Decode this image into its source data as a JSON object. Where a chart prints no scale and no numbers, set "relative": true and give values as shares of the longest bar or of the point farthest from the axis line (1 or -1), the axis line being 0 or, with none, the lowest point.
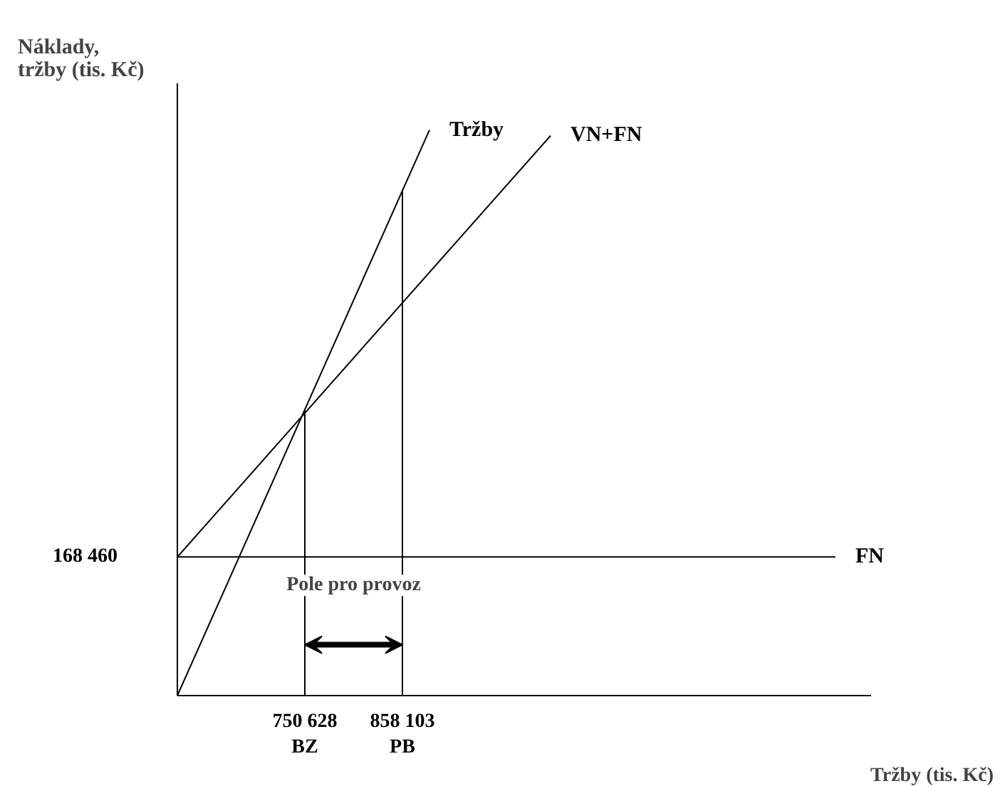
{
  "chart_data": {
    "type": "line",
    "relative": true,
    "ylabel": "Náklady,\ntržby (tis. Kč)",
    "xlabel": "Tržby (tis. Kč)",
    "xlim": [
      610200,
      1374300
    ],
    "xticks": [
      {
        "value": 750628,
        "label": "750 628\nBZ"
      },
      {
        "value": 858103,
        "label": "858 103\nPB"
      }
    ],
    "series": [
      {
        "name": "Tržby",
        "color": "#000000",
        "x": [
          610200,
          887900
        ],
        "values": [
          0,
          1
        ]
      },
      {
        "name": "VN+FN",
        "color": "#000000",
        "x": [
          610200,
          1021300
        ],
        "values": [
          0.245,
          0.99
        ]
      },
      {
        "name": "FN",
        "color": "#000000",
        "x": [
          610200,
          1335000
        ],
        "values": [
          0.245,
          0.245
        ]
      },
      {
        "color": "#000000",
        "x": [
          750628,
          750628
        ],
        "values": [
          0,
          0.505
        ]
      },
      {
        "color": "#000000",
        "x": [
          858103,
          858103
        ],
        "values": [
          0,
          0.895
        ]
      }
    ],
    "annotations": [
      "168 460",
      "Pole pro provoz"
    ],
    "tick_labels": "x",
    "grid": false,
    "marker": "none",
    "line_style": "solid"
  }
}
